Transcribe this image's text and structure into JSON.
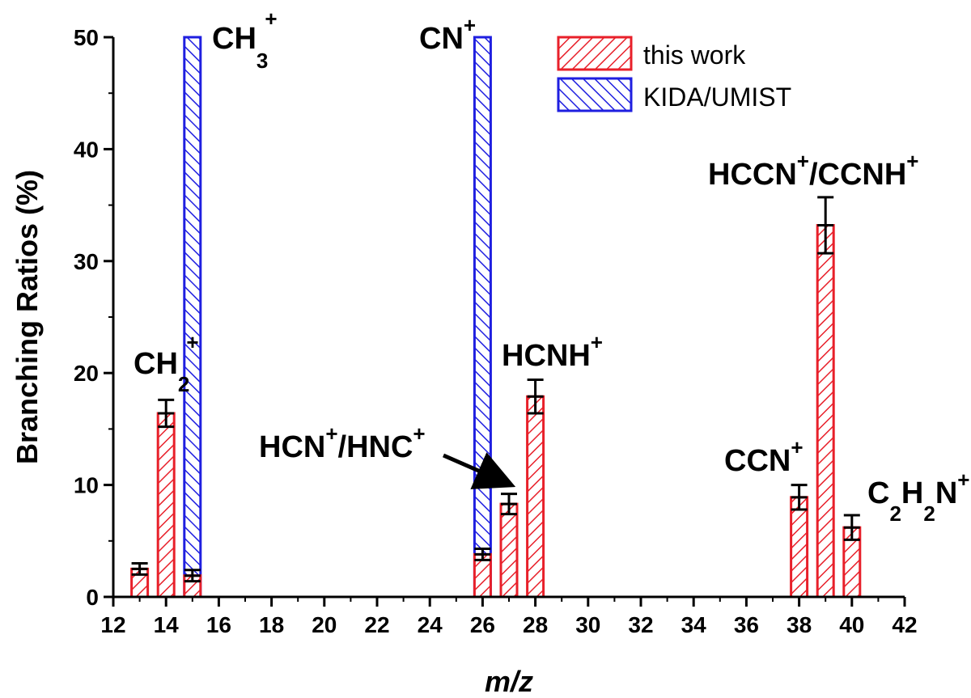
{
  "chart_data": {
    "type": "bar",
    "xlabel": "m/z",
    "ylabel": "Branching Ratios (%)",
    "xlim": [
      12,
      42
    ],
    "ylim": [
      0,
      50
    ],
    "xticks": [
      12,
      14,
      16,
      18,
      20,
      22,
      24,
      26,
      28,
      30,
      32,
      34,
      36,
      38,
      40,
      42
    ],
    "yticks": [
      0,
      10,
      20,
      30,
      40,
      50
    ],
    "grid": false,
    "legend_position": "top-right",
    "series": [
      {
        "name": "this work",
        "color": "#e8202a",
        "pattern": "hatch-forward",
        "x": [
          13,
          14,
          15,
          26,
          27,
          28,
          38,
          39,
          40
        ],
        "values": [
          2.5,
          16.4,
          1.9,
          3.8,
          8.3,
          17.9,
          8.9,
          33.2,
          6.2
        ],
        "errors": [
          0.5,
          1.2,
          0.5,
          0.5,
          0.9,
          1.5,
          1.1,
          2.5,
          1.1
        ]
      },
      {
        "name": "KIDA/UMIST",
        "color": "#1f1fe0",
        "pattern": "hatch-backward",
        "x": [
          15,
          26
        ],
        "values": [
          50,
          50
        ]
      }
    ],
    "annotations": [
      {
        "base": "CH",
        "sub": "3",
        "sup": "+",
        "tail": ""
      },
      {
        "base": "CH",
        "sub": "2",
        "sup": "+",
        "tail": ""
      },
      {
        "base": "CN",
        "sub": "",
        "sup": "+",
        "tail": ""
      },
      {
        "base": "HCNH",
        "sub": "",
        "sup": "+",
        "tail": ""
      },
      {
        "base": "HCN",
        "sub": "",
        "sup": "+",
        "tail": "/HNC",
        "sup2": "+"
      },
      {
        "base": "HCCN",
        "sub": "",
        "sup": "+",
        "tail": "/CCNH",
        "sup2": "+"
      },
      {
        "base": "CCN",
        "sub": "",
        "sup": "+",
        "tail": ""
      },
      {
        "base": "C",
        "sub": "2",
        "sup": "",
        "tail": "H",
        "sub2": "2",
        "tail2": "N",
        "sup2": "+"
      }
    ]
  }
}
